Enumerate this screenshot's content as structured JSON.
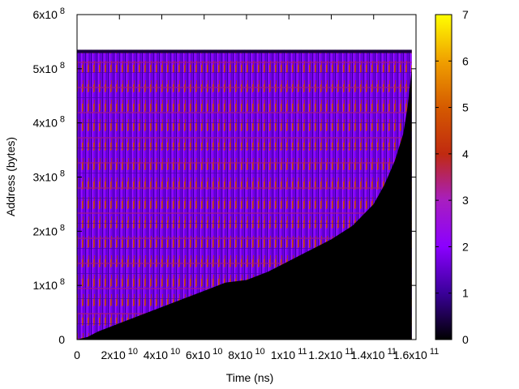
{
  "chart_data": {
    "type": "heatmap",
    "title": "",
    "xlabel": "Time (ns)",
    "ylabel": "Address (bytes)",
    "xlim": [
      0,
      160000000000
    ],
    "ylim": [
      0,
      600000000
    ],
    "x_ticks": [
      {
        "value": 0,
        "base": "0",
        "exp": ""
      },
      {
        "value": 20000000000,
        "base": "2x10",
        "exp": "10"
      },
      {
        "value": 40000000000,
        "base": "4x10",
        "exp": "10"
      },
      {
        "value": 60000000000,
        "base": "6x10",
        "exp": "10"
      },
      {
        "value": 80000000000,
        "base": "8x10",
        "exp": "10"
      },
      {
        "value": 100000000000,
        "base": "1x10",
        "exp": "11"
      },
      {
        "value": 120000000000,
        "base": "1.2x10",
        "exp": "11"
      },
      {
        "value": 140000000000,
        "base": "1.4x10",
        "exp": "11"
      },
      {
        "value": 160000000000,
        "base": "1.6x10",
        "exp": "11"
      }
    ],
    "y_ticks": [
      {
        "value": 0,
        "base": "0",
        "exp": ""
      },
      {
        "value": 100000000,
        "base": "1x10",
        "exp": "8"
      },
      {
        "value": 200000000,
        "base": "2x10",
        "exp": "8"
      },
      {
        "value": 300000000,
        "base": "3x10",
        "exp": "8"
      },
      {
        "value": 400000000,
        "base": "4x10",
        "exp": "8"
      },
      {
        "value": 500000000,
        "base": "5x10",
        "exp": "8"
      },
      {
        "value": 600000000,
        "base": "6x10",
        "exp": "8"
      }
    ],
    "colorbar": {
      "min": 0,
      "max": 7,
      "ticks": [
        "0",
        "1",
        "2",
        "3",
        "4",
        "5",
        "6",
        "7"
      ],
      "palette": [
        "#000000",
        "#3a0099",
        "#8b00ff",
        "#a81ec0",
        "#c02a10",
        "#d55a00",
        "#f0a000",
        "#ffff00"
      ]
    },
    "data_extent": {
      "x_max": 158000000000,
      "y_max": 535000000
    },
    "lower_boundary": [
      {
        "x": 0,
        "y": 0
      },
      {
        "x": 5000000000,
        "y": 5000000
      },
      {
        "x": 10000000000,
        "y": 15000000
      },
      {
        "x": 20000000000,
        "y": 30000000
      },
      {
        "x": 30000000000,
        "y": 45000000
      },
      {
        "x": 40000000000,
        "y": 60000000
      },
      {
        "x": 50000000000,
        "y": 75000000
      },
      {
        "x": 60000000000,
        "y": 90000000
      },
      {
        "x": 70000000000,
        "y": 105000000
      },
      {
        "x": 80000000000,
        "y": 110000000
      },
      {
        "x": 90000000000,
        "y": 125000000
      },
      {
        "x": 100000000000,
        "y": 145000000
      },
      {
        "x": 110000000000,
        "y": 165000000
      },
      {
        "x": 120000000000,
        "y": 185000000
      },
      {
        "x": 130000000000,
        "y": 210000000
      },
      {
        "x": 140000000000,
        "y": 250000000
      },
      {
        "x": 145000000000,
        "y": 285000000
      },
      {
        "x": 150000000000,
        "y": 330000000
      },
      {
        "x": 154000000000,
        "y": 380000000
      },
      {
        "x": 156000000000,
        "y": 430000000
      },
      {
        "x": 158000000000,
        "y": 500000000
      }
    ],
    "grid": false,
    "legend": "colorbar-right"
  }
}
